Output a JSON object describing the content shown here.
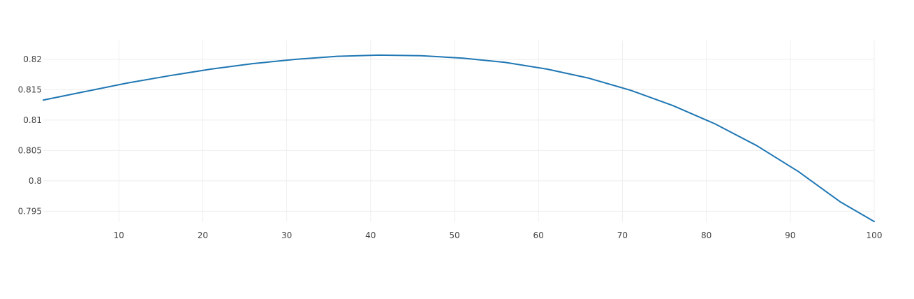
{
  "chart_data": {
    "type": "line",
    "title": "",
    "xlabel": "",
    "ylabel": "",
    "xlim": [
      1,
      100
    ],
    "ylim": [
      0.7932,
      0.8231
    ],
    "grid": true,
    "legend": "none",
    "x_ticks": [
      10,
      20,
      30,
      40,
      50,
      60,
      70,
      80,
      90,
      100
    ],
    "x_tick_labels": [
      "10",
      "20",
      "30",
      "40",
      "50",
      "60",
      "70",
      "80",
      "90",
      "100"
    ],
    "y_ticks": [
      0.795,
      0.8,
      0.805,
      0.81,
      0.815,
      0.82
    ],
    "y_tick_labels": [
      "0.795",
      "0.8",
      "0.805",
      "0.81",
      "0.815",
      "0.82"
    ],
    "series": [
      {
        "color": "#1f77b4",
        "x": [
          1,
          6,
          11,
          16,
          21,
          26,
          31,
          36,
          41,
          46,
          51,
          56,
          61,
          66,
          71,
          76,
          81,
          86,
          91,
          96,
          100
        ],
        "y": [
          0.8133,
          0.8147,
          0.8161,
          0.8173,
          0.8184,
          0.8193,
          0.82,
          0.8205,
          0.8207,
          0.8206,
          0.8202,
          0.8195,
          0.8184,
          0.8169,
          0.8149,
          0.8124,
          0.8094,
          0.8058,
          0.8015,
          0.7965,
          0.7933
        ]
      }
    ]
  }
}
